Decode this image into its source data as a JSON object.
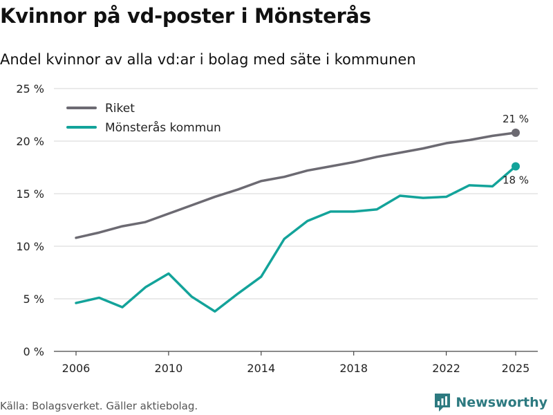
{
  "chart_data": {
    "type": "line",
    "title": "Kvinnor på vd-poster i Mönsterås",
    "subtitle": "Andel kvinnor av alla vd:ar i bolag med säte i kommunen",
    "x": [
      2006,
      2007,
      2008,
      2009,
      2010,
      2011,
      2012,
      2013,
      2014,
      2015,
      2016,
      2017,
      2018,
      2019,
      2020,
      2021,
      2022,
      2023,
      2024,
      2025
    ],
    "x_ticks": [
      "2006",
      "2010",
      "2014",
      "2018",
      "2022",
      "2025"
    ],
    "y_ticks": [
      "0 %",
      "5 %",
      "10 %",
      "15 %",
      "20 %",
      "25 %"
    ],
    "ylim": [
      0,
      25
    ],
    "xlim": [
      2006,
      2025
    ],
    "xlabel": "",
    "ylabel": "",
    "grid": true,
    "legend_position": "top-left",
    "series": [
      {
        "name": "Riket",
        "color": "#6c6a72",
        "values": [
          10.8,
          11.3,
          11.9,
          12.3,
          13.1,
          13.9,
          14.7,
          15.4,
          16.2,
          16.6,
          17.2,
          17.6,
          18.0,
          18.5,
          18.9,
          19.3,
          19.8,
          20.1,
          20.5,
          20.8
        ],
        "end_label": "21 %"
      },
      {
        "name": "Mönsterås kommun",
        "color": "#13a39a",
        "values": [
          4.6,
          5.1,
          4.2,
          6.1,
          7.4,
          5.2,
          3.8,
          5.5,
          7.1,
          10.7,
          12.4,
          13.3,
          13.3,
          13.5,
          14.8,
          14.6,
          14.7,
          15.8,
          15.7,
          17.6
        ],
        "end_label": "18 %"
      }
    ],
    "source": "Källa: Bolagsverket. Gäller aktiebolag."
  },
  "brand": {
    "name": "Newsworthy",
    "logo_icon": "newsworthy-logo-icon",
    "color": "#2d7a80"
  }
}
